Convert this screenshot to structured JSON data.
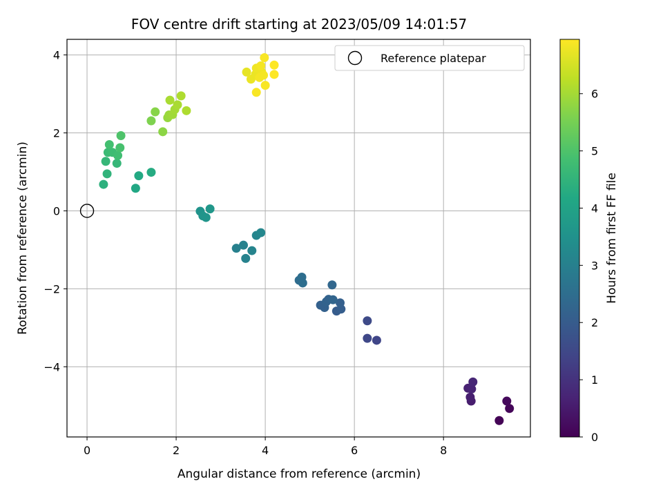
{
  "chart_data": {
    "type": "scatter",
    "title": "FOV centre drift starting at 2023/05/09 14:01:57",
    "xlabel": "Angular distance from reference (arcmin)",
    "ylabel": "Rotation from reference (arcmin)",
    "xlim": [
      -0.45,
      9.95
    ],
    "ylim": [
      -5.8,
      4.4
    ],
    "xticks": [
      0,
      2,
      4,
      6,
      8
    ],
    "yticks": [
      -4,
      -2,
      0,
      2,
      4
    ],
    "grid": true,
    "legend": {
      "position": "upper right",
      "entries": [
        "Reference platepar"
      ]
    },
    "reference_point": {
      "x": 0,
      "y": 0,
      "label": "Reference platepar"
    },
    "colorbar": {
      "label": "Hours from first FF file",
      "colormap": "viridis",
      "range": [
        0,
        6.95
      ],
      "ticks": [
        0,
        1,
        2,
        3,
        4,
        5,
        6
      ]
    },
    "points": [
      {
        "x": 9.25,
        "y": -5.38,
        "c": 0.05
      },
      {
        "x": 9.48,
        "y": -5.07,
        "c": 0.1
      },
      {
        "x": 9.42,
        "y": -4.88,
        "c": 0.15
      },
      {
        "x": 8.62,
        "y": -4.88,
        "c": 0.55
      },
      {
        "x": 8.6,
        "y": -4.78,
        "c": 0.6
      },
      {
        "x": 8.55,
        "y": -4.55,
        "c": 0.65
      },
      {
        "x": 8.63,
        "y": -4.57,
        "c": 0.7
      },
      {
        "x": 8.66,
        "y": -4.39,
        "c": 0.75
      },
      {
        "x": 6.5,
        "y": -3.32,
        "c": 1.45
      },
      {
        "x": 6.29,
        "y": -3.27,
        "c": 1.5
      },
      {
        "x": 6.29,
        "y": -2.82,
        "c": 1.55
      },
      {
        "x": 5.6,
        "y": -2.57,
        "c": 2.0
      },
      {
        "x": 5.7,
        "y": -2.52,
        "c": 2.05
      },
      {
        "x": 5.68,
        "y": -2.36,
        "c": 2.1
      },
      {
        "x": 5.33,
        "y": -2.48,
        "c": 2.15
      },
      {
        "x": 5.24,
        "y": -2.42,
        "c": 2.15
      },
      {
        "x": 5.37,
        "y": -2.33,
        "c": 2.2
      },
      {
        "x": 5.42,
        "y": -2.27,
        "c": 2.2
      },
      {
        "x": 5.52,
        "y": -2.28,
        "c": 2.25
      },
      {
        "x": 5.5,
        "y": -1.9,
        "c": 2.3
      },
      {
        "x": 4.76,
        "y": -1.78,
        "c": 2.45
      },
      {
        "x": 4.82,
        "y": -1.7,
        "c": 2.5
      },
      {
        "x": 4.84,
        "y": -1.85,
        "c": 2.5
      },
      {
        "x": 3.35,
        "y": -0.96,
        "c": 3.0
      },
      {
        "x": 3.51,
        "y": -0.88,
        "c": 3.05
      },
      {
        "x": 3.56,
        "y": -1.22,
        "c": 3.05
      },
      {
        "x": 3.7,
        "y": -1.02,
        "c": 3.1
      },
      {
        "x": 3.8,
        "y": -0.63,
        "c": 3.15
      },
      {
        "x": 3.9,
        "y": -0.56,
        "c": 3.2
      },
      {
        "x": 2.54,
        "y": -0.01,
        "c": 3.55
      },
      {
        "x": 2.6,
        "y": -0.13,
        "c": 3.6
      },
      {
        "x": 2.67,
        "y": -0.17,
        "c": 3.6
      },
      {
        "x": 2.76,
        "y": 0.05,
        "c": 3.65
      },
      {
        "x": 1.09,
        "y": 0.58,
        "c": 4.15
      },
      {
        "x": 1.16,
        "y": 0.9,
        "c": 4.2
      },
      {
        "x": 1.44,
        "y": 0.99,
        "c": 4.25
      },
      {
        "x": 0.37,
        "y": 0.68,
        "c": 4.4
      },
      {
        "x": 0.45,
        "y": 0.95,
        "c": 4.5
      },
      {
        "x": 0.42,
        "y": 1.27,
        "c": 4.6
      },
      {
        "x": 0.67,
        "y": 1.22,
        "c": 4.6
      },
      {
        "x": 0.47,
        "y": 1.5,
        "c": 4.7
      },
      {
        "x": 0.57,
        "y": 1.5,
        "c": 4.75
      },
      {
        "x": 0.69,
        "y": 1.42,
        "c": 4.8
      },
      {
        "x": 0.5,
        "y": 1.7,
        "c": 4.85
      },
      {
        "x": 0.74,
        "y": 1.62,
        "c": 4.9
      },
      {
        "x": 0.76,
        "y": 1.93,
        "c": 5.0
      },
      {
        "x": 1.44,
        "y": 2.31,
        "c": 5.6
      },
      {
        "x": 1.53,
        "y": 2.54,
        "c": 5.7
      },
      {
        "x": 1.7,
        "y": 2.03,
        "c": 5.75
      },
      {
        "x": 1.81,
        "y": 2.39,
        "c": 5.85
      },
      {
        "x": 1.84,
        "y": 2.46,
        "c": 5.9
      },
      {
        "x": 1.92,
        "y": 2.47,
        "c": 5.95
      },
      {
        "x": 1.97,
        "y": 2.6,
        "c": 6.0
      },
      {
        "x": 2.03,
        "y": 2.72,
        "c": 6.05
      },
      {
        "x": 1.86,
        "y": 2.84,
        "c": 6.05
      },
      {
        "x": 2.11,
        "y": 2.95,
        "c": 6.1
      },
      {
        "x": 2.23,
        "y": 2.57,
        "c": 6.1
      },
      {
        "x": 3.58,
        "y": 3.56,
        "c": 6.7
      },
      {
        "x": 3.68,
        "y": 3.38,
        "c": 6.75
      },
      {
        "x": 3.78,
        "y": 3.5,
        "c": 6.75
      },
      {
        "x": 3.8,
        "y": 3.66,
        "c": 6.8
      },
      {
        "x": 3.92,
        "y": 3.56,
        "c": 6.8
      },
      {
        "x": 3.9,
        "y": 3.72,
        "c": 6.85
      },
      {
        "x": 3.87,
        "y": 3.42,
        "c": 6.85
      },
      {
        "x": 3.96,
        "y": 3.48,
        "c": 6.85
      },
      {
        "x": 3.8,
        "y": 3.04,
        "c": 6.9
      },
      {
        "x": 4.0,
        "y": 3.22,
        "c": 6.9
      },
      {
        "x": 3.98,
        "y": 3.93,
        "c": 6.9
      },
      {
        "x": 4.2,
        "y": 3.74,
        "c": 6.95
      },
      {
        "x": 4.2,
        "y": 3.5,
        "c": 6.95
      }
    ]
  }
}
